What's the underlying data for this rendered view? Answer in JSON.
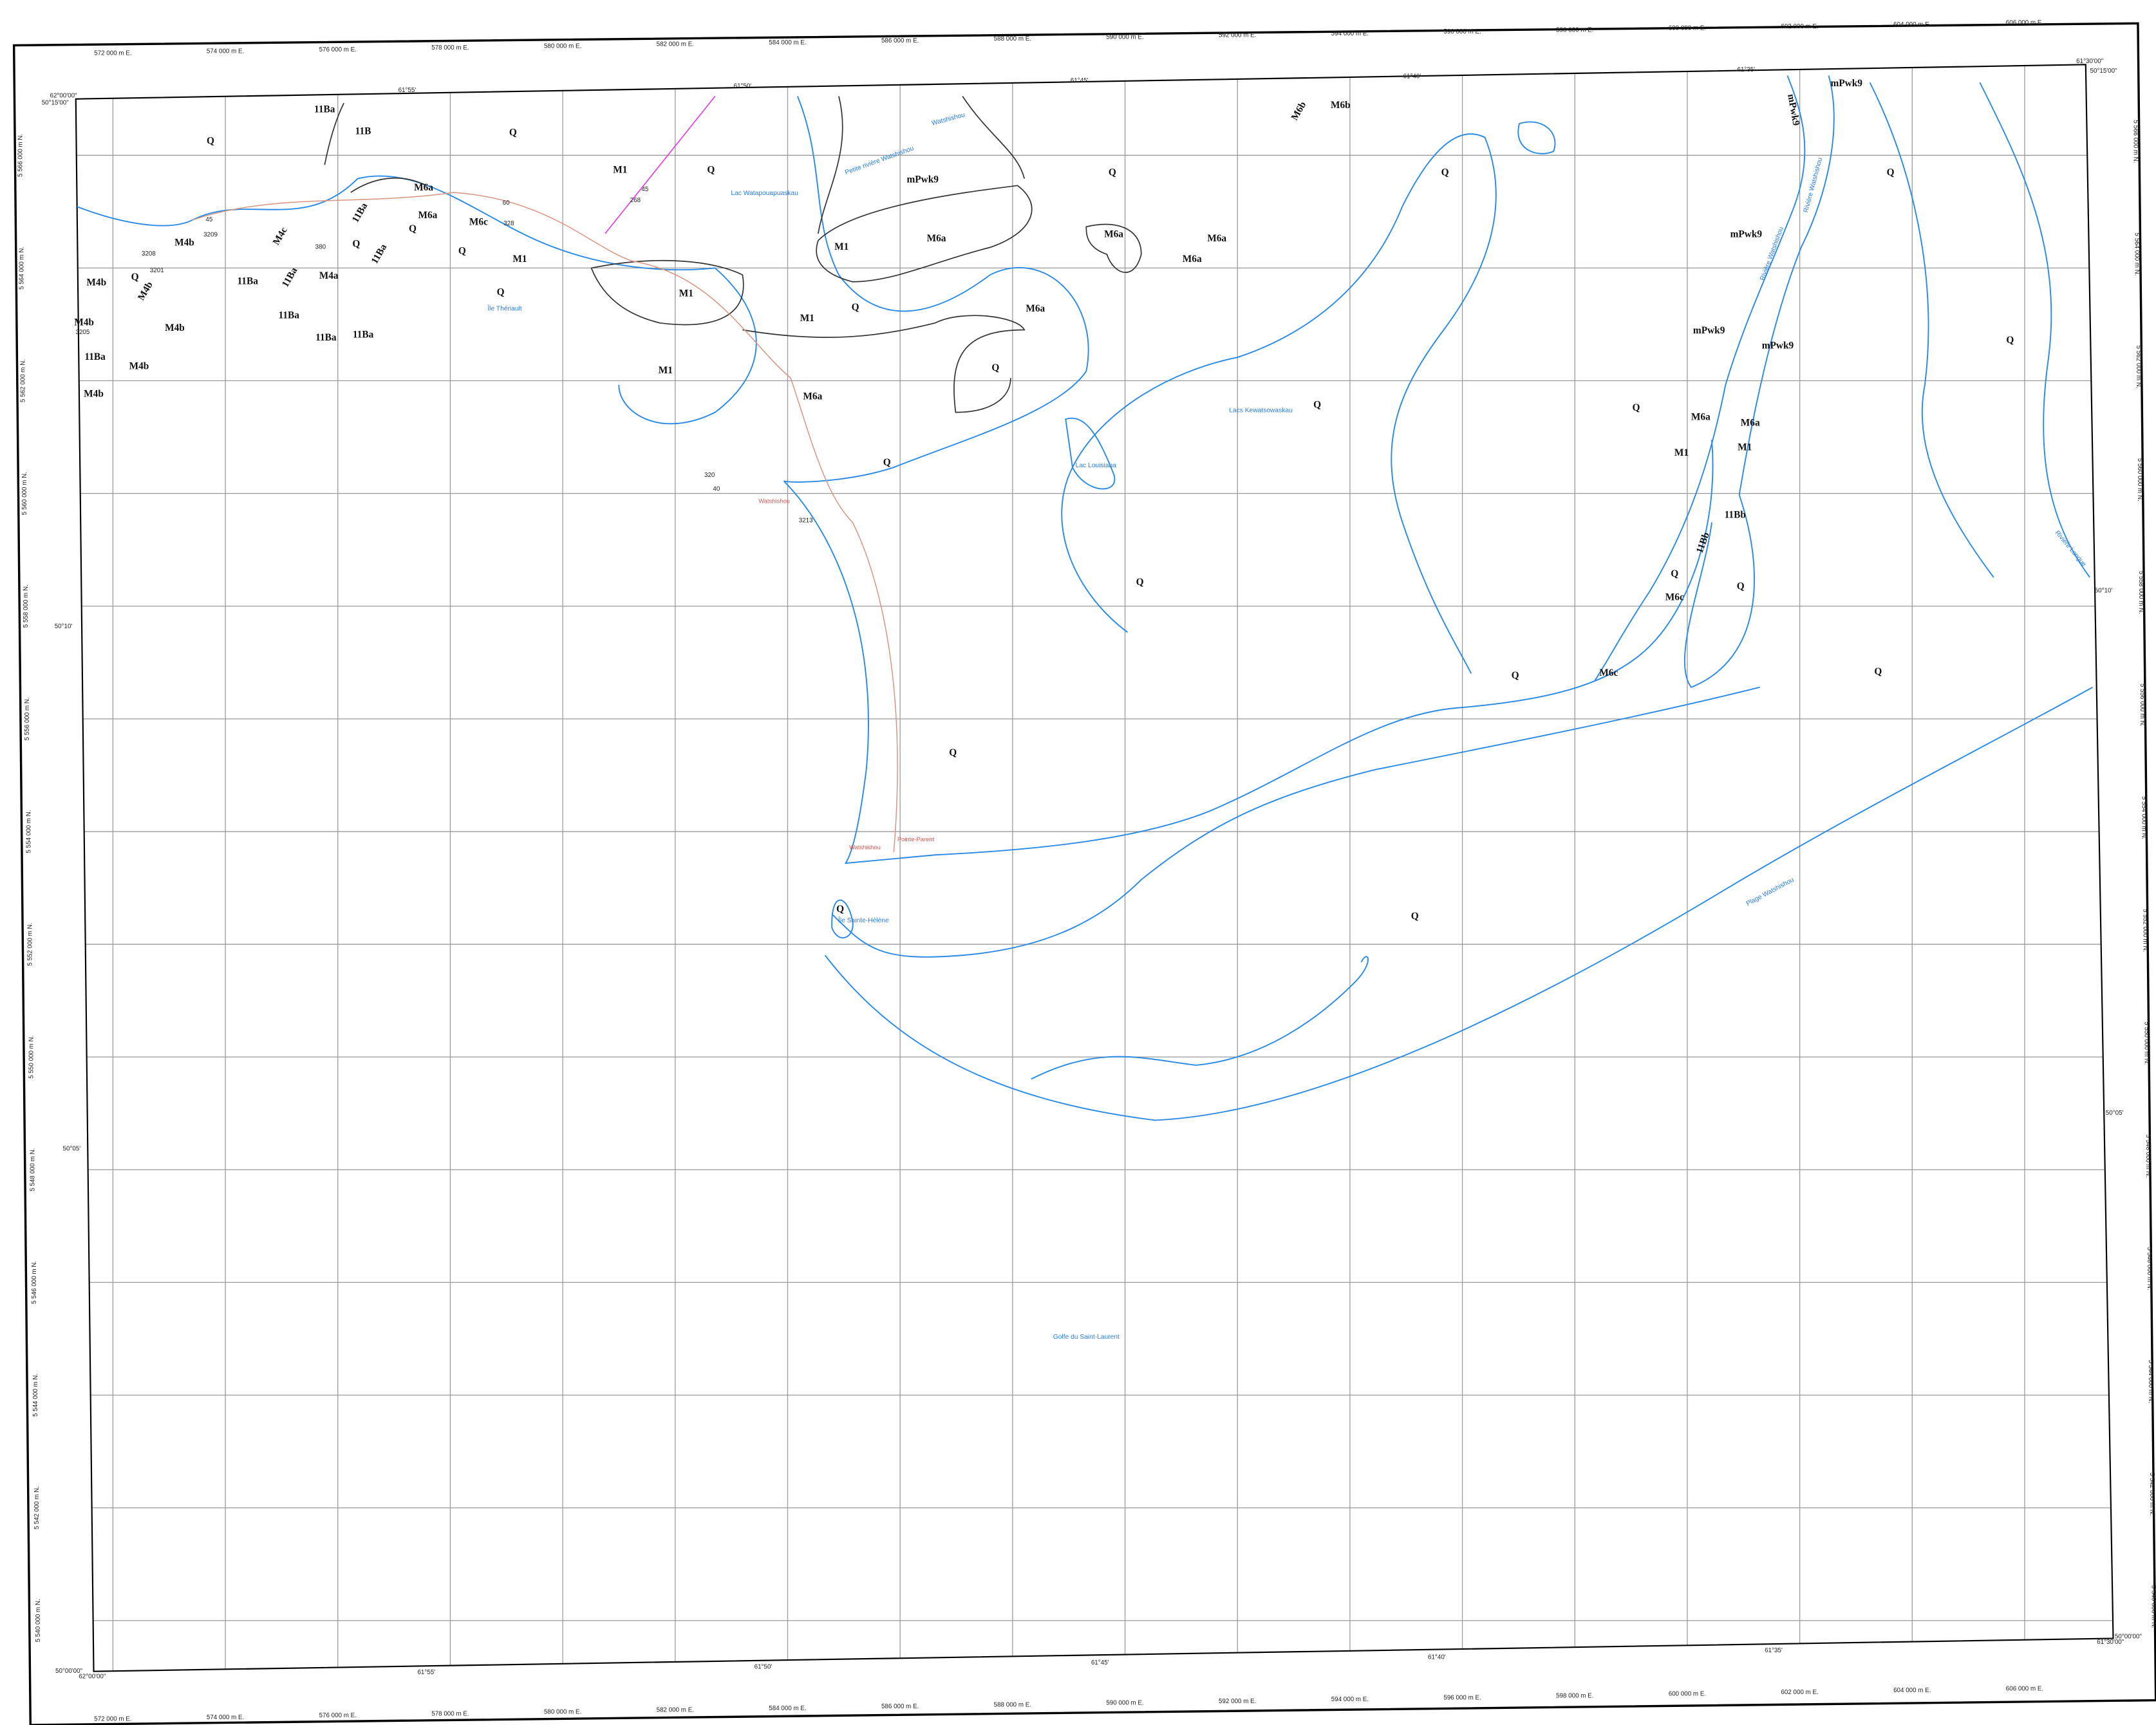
{
  "grid": {
    "eastings_top": [
      "572 000 m E.",
      "574 000 m E.",
      "576 000 m E.",
      "578 000 m E.",
      "580 000 m E.",
      "582 000 m E.",
      "584 000 m E.",
      "586 000 m E.",
      "588 000 m E.",
      "590 000 m E.",
      "592 000 m E.",
      "594 000 m E.",
      "596 000 m E.",
      "598 000 m E.",
      "600 000 m E.",
      "602 000 m E.",
      "604 000 m E.",
      "606 000 m E."
    ],
    "eastings_bottom": [
      "572 000 m E.",
      "574 000 m E.",
      "576 000 m E.",
      "578 000 m E.",
      "580 000 m E.",
      "582 000 m E.",
      "584 000 m E.",
      "586 000 m E.",
      "588 000 m E.",
      "590 000 m E.",
      "592 000 m E.",
      "594 000 m E.",
      "596 000 m E.",
      "598 000 m E.",
      "600 000 m E.",
      "602 000 m E.",
      "604 000 m E.",
      "606 000 m E."
    ],
    "northings_left": [
      "5 566 000 m N.",
      "5 564 000 m N.",
      "5 562 000 m N.",
      "5 560 000 m N.",
      "5 558 000 m N.",
      "5 556 000 m N.",
      "5 554 000 m N.",
      "5 552 000 m N.",
      "5 550 000 m N.",
      "5 548 000 m N.",
      "5 546 000 m N.",
      "5 544 000 m N.",
      "5 542 000 m N.",
      "5 540 000 m N."
    ],
    "northings_right": [
      "5 566 000 m N.",
      "5 564 000 m N.",
      "5 562 000 m N.",
      "5 560 000 m N.",
      "5 558 000 m N.",
      "5 556 000 m N.",
      "5 554 000 m N.",
      "5 552 000 m N.",
      "5 550 000 m N.",
      "5 548 000 m N.",
      "5 546 000 m N.",
      "5 544 000 m N.",
      "5 542 000 m N.",
      "5 540 000 m N."
    ],
    "geographic": [
      "62°00'00\"",
      "50°15'00\"",
      "61°55'",
      "61°50'",
      "61°45'",
      "61°40'",
      "61°35'",
      "61°30'00\"",
      "50°15'00\"",
      "50°10'",
      "50°05'",
      "50°00'00\"",
      "62°00'00\"",
      "50°10'",
      "50°05'",
      "50°00'00\"",
      "61°30'00\"",
      "61°55'",
      "61°50'",
      "61°45'",
      "61°40'",
      "61°35'"
    ]
  },
  "map_units": [
    "11Ba",
    "11B",
    "Q",
    "Q",
    "M1",
    "Q",
    "M6a",
    "M6a",
    "M6c",
    "11Ba",
    "M4c",
    "M4b",
    "11Ba",
    "Q",
    "Q",
    "Q",
    "M1",
    "Q",
    "11Ba",
    "M4a",
    "11Ba",
    "11Ba",
    "11Ba",
    "11Ba",
    "M4b",
    "Q",
    "M4b",
    "M4b",
    "11Ba",
    "M4b",
    "M4b",
    "M4b",
    "M1",
    "M1",
    "M6a",
    "M1",
    "Q",
    "M6a",
    "Q",
    "Q",
    "mPwk9",
    "M1",
    "M6a",
    "Q",
    "M6a",
    "M6a",
    "M6a",
    "M6b",
    "M6b",
    "Q",
    "Q",
    "Q",
    "mPwk9",
    "mPwk9",
    "mPwk9",
    "mPwk9",
    "mPwk9",
    "M6a",
    "M6a",
    "M1",
    "M1",
    "Q",
    "Q",
    "11Bb",
    "11Bb",
    "Q",
    "Q",
    "M6c",
    "M6c",
    "Q",
    "Q",
    "Q",
    "Q",
    "Q",
    "Q"
  ],
  "place_names": [
    "Lac Watapouapuaskau",
    "Petite rivière Watshishou",
    "Watshishou",
    "Île Thériault",
    "Lacs Kewatsowaskau",
    "Lac Louisiana",
    "Île Sainte-Hélène",
    "Golfe du Saint-Laurent",
    "Plage Watshishou",
    "Rivière Watshishou",
    "Rivière Watshishou",
    "Rivière Longue"
  ],
  "localities": [
    "Watshishou",
    "Pointe-Parent",
    "Watshishou"
  ],
  "spot_labels": [
    "320",
    "40",
    "3213",
    "3209",
    "3208",
    "3201",
    "3205",
    "45",
    "268",
    "60",
    "328",
    "380",
    "45"
  ]
}
